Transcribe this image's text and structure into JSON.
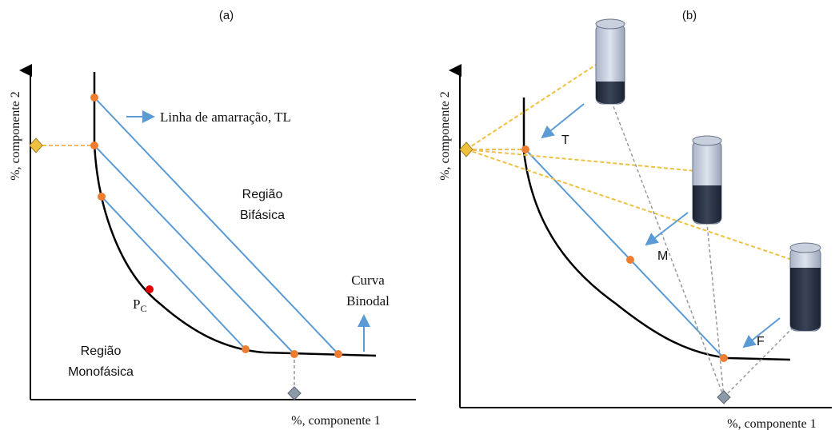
{
  "panels": [
    {
      "label": "(a)",
      "y_axis_label": "%, componente 2",
      "x_axis_label": "%, componente 1",
      "tie_line_note": "Linha de amarração, TL",
      "critical_point": {
        "main": "P",
        "sub": "C"
      },
      "biphasic_region": [
        "Região",
        "Bifásica"
      ],
      "binodal_curve": [
        "Curva",
        "Binodal"
      ],
      "monophasic_region": [
        "Região",
        "Monofásica"
      ]
    },
    {
      "label": "(b)",
      "y_axis_label": "%, componente 2",
      "x_axis_label": "%, componente 1",
      "points": [
        "T",
        "M",
        "F"
      ]
    }
  ]
}
